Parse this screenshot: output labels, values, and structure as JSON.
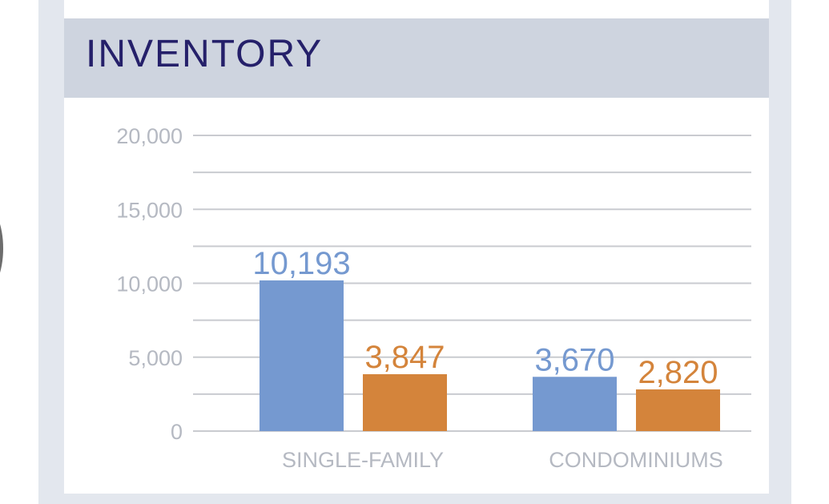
{
  "header": {
    "title": "INVENTORY"
  },
  "chart_data": {
    "type": "bar",
    "title": "INVENTORY",
    "categories": [
      "SINGLE-FAMILY",
      "CONDOMINIUMS"
    ],
    "series": [
      {
        "values": [
          10193,
          3670
        ],
        "labels": [
          "10,193",
          "3,670"
        ],
        "color": "#7599d0"
      },
      {
        "values": [
          3847,
          2820
        ],
        "labels": [
          "3,847",
          "2,820"
        ],
        "color": "#d4843b"
      }
    ],
    "ylim": [
      0,
      20000
    ],
    "yticks": [
      0,
      5000,
      10000,
      15000,
      20000
    ],
    "ytick_labels": [
      "0",
      "5,000",
      "10,000",
      "15,000",
      "20,000"
    ],
    "grid_step": 2500,
    "grid": true,
    "gridline_color": "#c9cbd0",
    "tick_label_color": "#b5b9c2"
  }
}
